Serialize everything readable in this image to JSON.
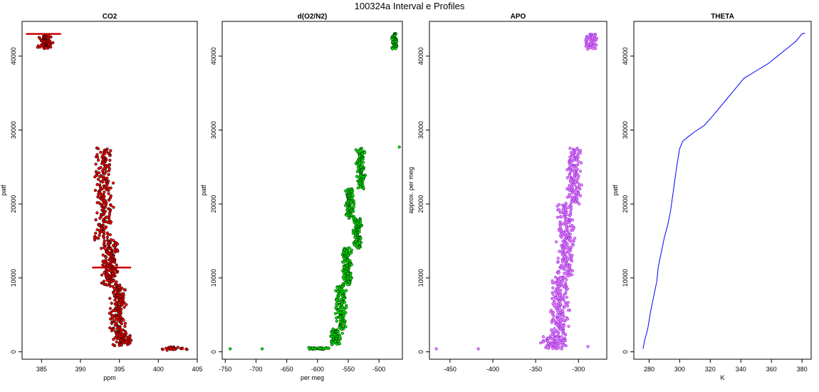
{
  "figure": {
    "title": "100324a   Interval e Profiles"
  },
  "chart_data": [
    {
      "type": "scatter",
      "title": "CO2",
      "xlabel": "ppm",
      "ylabel": "patf",
      "xlim": [
        382.5,
        405
      ],
      "ylim": [
        -1000,
        44700
      ],
      "xticks": [
        385,
        390,
        395,
        400,
        405
      ],
      "yticks": [
        0,
        10000,
        20000,
        30000,
        40000
      ],
      "color": "#ff0000",
      "edge_color": "#1a0000",
      "series": [
        {
          "segments": [
            {
              "y": [
                42700,
                41000
              ],
              "x_center": 385.5,
              "x_jitter": 1.2,
              "n": 70
            },
            {
              "y": [
                27500,
                15000
              ],
              "x_center": 393.0,
              "x_jitter": 1.3,
              "n": 200
            },
            {
              "y": [
                15000,
                9000
              ],
              "x_center": 393.8,
              "x_jitter": 1.2,
              "n": 150
            },
            {
              "y": [
                9000,
                2500
              ],
              "x_center": 394.8,
              "x_jitter": 1.2,
              "n": 150
            },
            {
              "y": [
                2500,
                800
              ],
              "x_center": 395.4,
              "x_jitter": 1.3,
              "n": 60
            },
            {
              "y": [
                600,
                300
              ],
              "x_center": 402.0,
              "x_jitter": 2.0,
              "n": 25
            }
          ]
        }
      ],
      "hlines": [
        {
          "y": 43000,
          "x": [
            383.0,
            387.5
          ]
        },
        {
          "y": 11400,
          "x": [
            391.5,
            396.5
          ]
        }
      ]
    },
    {
      "type": "scatter",
      "title": "d(O2/N2)",
      "xlabel": "per meg",
      "ylabel": "patf",
      "xlim": [
        -755,
        -462
      ],
      "ylim": [
        -1000,
        44700
      ],
      "xticks": [
        -750,
        -700,
        -650,
        -600,
        -550,
        -500
      ],
      "yticks": [
        0,
        10000,
        20000,
        30000,
        40000
      ],
      "color": "#00ee00",
      "edge_color": "#003300",
      "series": [
        {
          "segments": [
            {
              "y": [
                43000,
                41000
              ],
              "x_center": -475,
              "x_jitter": 5,
              "n": 60
            },
            {
              "y": [
                27500,
                22000
              ],
              "x_center": -530,
              "x_jitter": 8,
              "n": 100
            },
            {
              "y": [
                22000,
                18000
              ],
              "x_center": -548,
              "x_jitter": 8,
              "n": 90
            },
            {
              "y": [
                18000,
                14000
              ],
              "x_center": -535,
              "x_jitter": 8,
              "n": 90
            },
            {
              "y": [
                14000,
                9000
              ],
              "x_center": -552,
              "x_jitter": 9,
              "n": 110
            },
            {
              "y": [
                9000,
                3000
              ],
              "x_center": -562,
              "x_jitter": 10,
              "n": 120
            },
            {
              "y": [
                3000,
                1000
              ],
              "x_center": -570,
              "x_jitter": 12,
              "n": 60
            },
            {
              "y": [
                500,
                400
              ],
              "x_center": -598,
              "x_jitter": 18,
              "n": 40
            }
          ]
        }
      ],
      "points": [
        [
          -742,
          400
        ],
        [
          -690,
          400
        ],
        [
          -467,
          27700
        ]
      ]
    },
    {
      "type": "scatter",
      "title": "APO",
      "xlabel": "",
      "ylabel": "approx. per meg",
      "xlim": [
        -474,
        -267
      ],
      "ylim": [
        -1000,
        44700
      ],
      "xticks": [
        -450,
        -400,
        -350,
        -300
      ],
      "yticks": [
        0,
        10000,
        20000,
        30000,
        40000
      ],
      "color": "#ee82ee",
      "edge_color": "#8a2be2",
      "series": [
        {
          "segments": [
            {
              "y": [
                43000,
                41000
              ],
              "x_center": -285,
              "x_jitter": 8,
              "n": 60
            },
            {
              "y": [
                27500,
                20000
              ],
              "x_center": -305,
              "x_jitter": 10,
              "n": 140
            },
            {
              "y": [
                20000,
                10000
              ],
              "x_center": -315,
              "x_jitter": 12,
              "n": 200
            },
            {
              "y": [
                10000,
                2000
              ],
              "x_center": -322,
              "x_jitter": 13,
              "n": 170
            },
            {
              "y": [
                2000,
                400
              ],
              "x_center": -330,
              "x_jitter": 16,
              "n": 70
            }
          ]
        }
      ],
      "points": [
        [
          -466,
          400
        ],
        [
          -417,
          400
        ],
        [
          -289,
          700
        ]
      ]
    },
    {
      "type": "line",
      "title": "THETA",
      "xlabel": "K",
      "ylabel": "patf",
      "xlim": [
        270,
        386
      ],
      "ylim": [
        -1000,
        44700
      ],
      "xticks": [
        280,
        300,
        320,
        340,
        360,
        380
      ],
      "yticks": [
        0,
        10000,
        20000,
        30000,
        40000
      ],
      "color": "#0000ff",
      "x": [
        276,
        277,
        279,
        281,
        283,
        285,
        286,
        288,
        290,
        292,
        294,
        296,
        298,
        300,
        302,
        305,
        310,
        316,
        322,
        330,
        336,
        342,
        350,
        358,
        364,
        370,
        376,
        380,
        382
      ],
      "y": [
        400,
        1500,
        3000,
        5500,
        7500,
        9500,
        11500,
        13500,
        15500,
        17000,
        19000,
        22000,
        25000,
        27500,
        28500,
        29000,
        29800,
        30600,
        32000,
        34000,
        35500,
        37000,
        38000,
        39000,
        40000,
        41000,
        42000,
        43000,
        43100
      ]
    }
  ]
}
